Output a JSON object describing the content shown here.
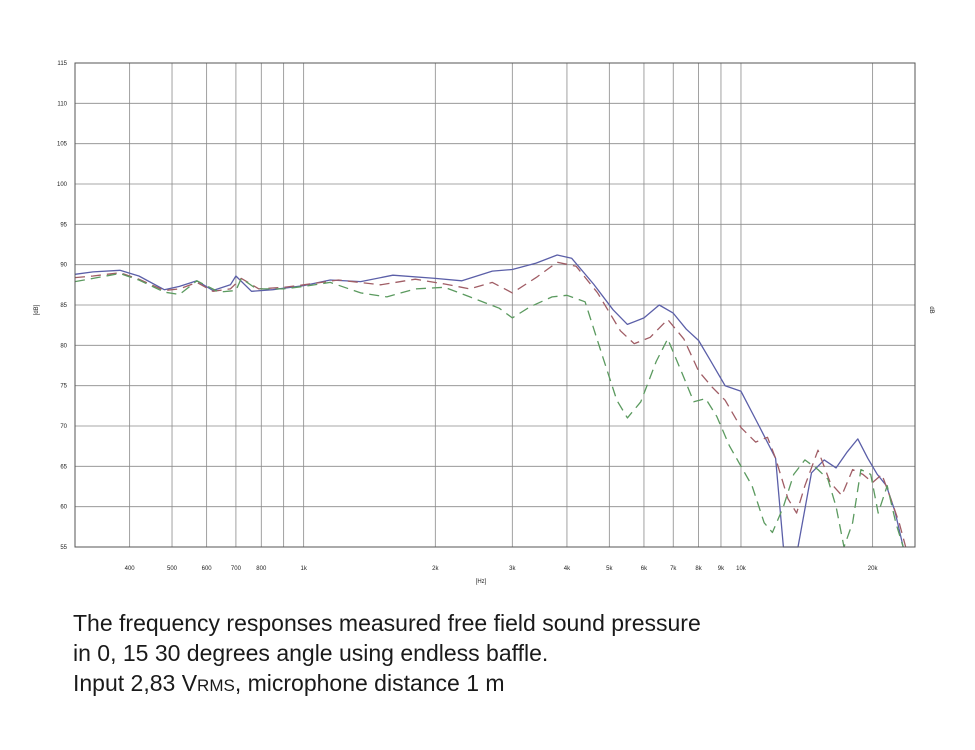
{
  "chart_data": {
    "type": "line",
    "title": "",
    "xlabel": "[Hz]",
    "ylabel": "[dB]",
    "y2label": "dB",
    "x_scale": "log",
    "xlim": [
      300,
      25000
    ],
    "ylim": [
      55,
      115
    ],
    "grid": true,
    "y_ticks": [
      "55",
      "60",
      "65",
      "70",
      "75",
      "80",
      "85",
      "90",
      "95",
      "100",
      "105",
      "110",
      "115"
    ],
    "x_ticks": [
      {
        "value": 400,
        "label": "400"
      },
      {
        "value": 500,
        "label": "500"
      },
      {
        "value": 600,
        "label": "600"
      },
      {
        "value": 700,
        "label": "700"
      },
      {
        "value": 800,
        "label": "800"
      },
      {
        "value": 1000,
        "label": "1k"
      },
      {
        "value": 2000,
        "label": "2k"
      },
      {
        "value": 3000,
        "label": "3k"
      },
      {
        "value": 4000,
        "label": "4k"
      },
      {
        "value": 5000,
        "label": "5k"
      },
      {
        "value": 6000,
        "label": "6k"
      },
      {
        "value": 7000,
        "label": "7k"
      },
      {
        "value": 8000,
        "label": "8k"
      },
      {
        "value": 9000,
        "label": "9k"
      },
      {
        "value": 10000,
        "label": "10k"
      },
      {
        "value": 20000,
        "label": "20k"
      }
    ],
    "x_grid": [
      400,
      500,
      600,
      700,
      800,
      900,
      1000,
      2000,
      3000,
      4000,
      5000,
      6000,
      7000,
      8000,
      9000,
      10000,
      20000
    ],
    "series": [
      {
        "color": "#5b5fa8",
        "dash": "",
        "points": [
          [
            300,
            88.8
          ],
          [
            330,
            89.1
          ],
          [
            380,
            89.3
          ],
          [
            420,
            88.6
          ],
          [
            480,
            86.9
          ],
          [
            520,
            87.3
          ],
          [
            570,
            88.0
          ],
          [
            620,
            86.8
          ],
          [
            680,
            87.5
          ],
          [
            700,
            88.6
          ],
          [
            760,
            86.7
          ],
          [
            850,
            86.9
          ],
          [
            1000,
            87.4
          ],
          [
            1150,
            88.1
          ],
          [
            1350,
            87.9
          ],
          [
            1600,
            88.7
          ],
          [
            2000,
            88.3
          ],
          [
            2300,
            88.0
          ],
          [
            2700,
            89.2
          ],
          [
            3000,
            89.4
          ],
          [
            3400,
            90.2
          ],
          [
            3800,
            91.2
          ],
          [
            4100,
            90.8
          ],
          [
            4600,
            87.6
          ],
          [
            5100,
            84.4
          ],
          [
            5500,
            82.6
          ],
          [
            6000,
            83.4
          ],
          [
            6500,
            85.0
          ],
          [
            7000,
            84.0
          ],
          [
            7500,
            82.0
          ],
          [
            8000,
            80.6
          ],
          [
            8500,
            78.2
          ],
          [
            9200,
            75.0
          ],
          [
            10000,
            74.3
          ],
          [
            11000,
            70.0
          ],
          [
            12000,
            66.0
          ],
          [
            12500,
            55.0
          ],
          [
            13500,
            55.0
          ],
          [
            14500,
            64.2
          ],
          [
            15500,
            65.8
          ],
          [
            16500,
            64.8
          ],
          [
            17500,
            66.8
          ],
          [
            18500,
            68.4
          ],
          [
            19500,
            66.0
          ],
          [
            20500,
            64.0
          ],
          [
            21500,
            62.6
          ],
          [
            22500,
            59.4
          ],
          [
            23500,
            55.0
          ]
        ]
      },
      {
        "color": "#a05d65",
        "dash": "10,6",
        "points": [
          [
            300,
            88.4
          ],
          [
            330,
            88.6
          ],
          [
            380,
            89.0
          ],
          [
            420,
            88.2
          ],
          [
            480,
            86.8
          ],
          [
            520,
            87.0
          ],
          [
            570,
            87.8
          ],
          [
            620,
            86.7
          ],
          [
            680,
            87.0
          ],
          [
            720,
            88.3
          ],
          [
            790,
            87.0
          ],
          [
            900,
            87.2
          ],
          [
            1000,
            87.5
          ],
          [
            1200,
            88.1
          ],
          [
            1500,
            87.5
          ],
          [
            1800,
            88.2
          ],
          [
            2100,
            87.6
          ],
          [
            2400,
            87.0
          ],
          [
            2700,
            87.8
          ],
          [
            3000,
            86.5
          ],
          [
            3400,
            88.4
          ],
          [
            3800,
            90.3
          ],
          [
            4200,
            89.8
          ],
          [
            4700,
            86.5
          ],
          [
            5300,
            81.8
          ],
          [
            5700,
            80.2
          ],
          [
            6200,
            81.0
          ],
          [
            6800,
            83.2
          ],
          [
            7400,
            80.8
          ],
          [
            8000,
            76.8
          ],
          [
            8600,
            74.8
          ],
          [
            9200,
            73.2
          ],
          [
            10000,
            69.8
          ],
          [
            10800,
            68.0
          ],
          [
            11500,
            68.6
          ],
          [
            12000,
            66.0
          ],
          [
            12800,
            61.0
          ],
          [
            13400,
            59.2
          ],
          [
            14000,
            62.6
          ],
          [
            15000,
            67.0
          ],
          [
            16000,
            63.0
          ],
          [
            17000,
            61.4
          ],
          [
            18000,
            64.6
          ],
          [
            19000,
            64.0
          ],
          [
            20000,
            63.0
          ],
          [
            21000,
            64.0
          ],
          [
            22000,
            61.0
          ],
          [
            23000,
            58.0
          ],
          [
            23800,
            55.0
          ]
        ]
      },
      {
        "color": "#5b9a5f",
        "dash": "10,6",
        "points": [
          [
            300,
            87.9
          ],
          [
            330,
            88.3
          ],
          [
            380,
            88.9
          ],
          [
            420,
            88.1
          ],
          [
            480,
            86.6
          ],
          [
            520,
            86.3
          ],
          [
            570,
            88.0
          ],
          [
            640,
            86.6
          ],
          [
            700,
            86.8
          ],
          [
            720,
            88.3
          ],
          [
            780,
            87.0
          ],
          [
            900,
            87.0
          ],
          [
            1000,
            87.3
          ],
          [
            1150,
            87.8
          ],
          [
            1350,
            86.5
          ],
          [
            1550,
            86.0
          ],
          [
            1800,
            87.0
          ],
          [
            2100,
            87.2
          ],
          [
            2400,
            86.0
          ],
          [
            2800,
            84.6
          ],
          [
            3000,
            83.4
          ],
          [
            3300,
            84.8
          ],
          [
            3700,
            86.0
          ],
          [
            4000,
            86.2
          ],
          [
            4400,
            85.4
          ],
          [
            4800,
            79.0
          ],
          [
            5200,
            73.2
          ],
          [
            5500,
            71.0
          ],
          [
            5900,
            73.0
          ],
          [
            6400,
            78.0
          ],
          [
            6800,
            80.8
          ],
          [
            7300,
            76.8
          ],
          [
            7800,
            73.0
          ],
          [
            8300,
            73.4
          ],
          [
            8800,
            71.2
          ],
          [
            9400,
            67.6
          ],
          [
            10000,
            65.0
          ],
          [
            10600,
            62.6
          ],
          [
            11300,
            58.0
          ],
          [
            11800,
            56.8
          ],
          [
            12500,
            60.0
          ],
          [
            13200,
            64.0
          ],
          [
            14000,
            65.8
          ],
          [
            15000,
            64.6
          ],
          [
            15800,
            63.4
          ],
          [
            16500,
            60.0
          ],
          [
            17200,
            55.0
          ],
          [
            18000,
            58.0
          ],
          [
            18800,
            64.6
          ],
          [
            19800,
            64.0
          ],
          [
            20600,
            59.2
          ],
          [
            21600,
            62.6
          ],
          [
            22600,
            58.0
          ],
          [
            23500,
            55.0
          ]
        ]
      }
    ]
  },
  "caption": {
    "line1": "The frequency responses measured free field sound pressure",
    "line2": "in 0, 15 30 degrees angle using endless baffle.",
    "line3_pre": "Input 2,83 V",
    "line3_sub": "RMS",
    "line3_post": ", microphone distance 1 m"
  }
}
